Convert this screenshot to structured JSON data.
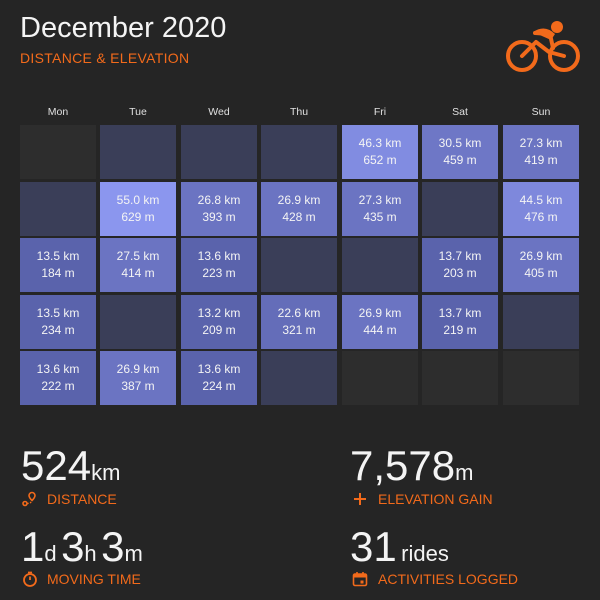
{
  "header": {
    "title": "December 2020",
    "subtitle": "DISTANCE & ELEVATION"
  },
  "logo": {
    "icon": "cyclist-icon",
    "color": "#f26a1b"
  },
  "calendar": {
    "days": [
      "Mon",
      "Tue",
      "Wed",
      "Thu",
      "Fri",
      "Sat",
      "Sun"
    ],
    "weeks": [
      [
        {
          "type": "empty"
        },
        {
          "type": "none"
        },
        {
          "type": "none"
        },
        {
          "type": "none"
        },
        {
          "type": "ride",
          "km": "46.3 km",
          "m": "652 m",
          "level": 0.85
        },
        {
          "type": "ride",
          "km": "30.5 km",
          "m": "459 m",
          "level": 0.55
        },
        {
          "type": "ride",
          "km": "27.3 km",
          "m": "419 m",
          "level": 0.5
        }
      ],
      [
        {
          "type": "none"
        },
        {
          "type": "ride",
          "km": "55.0 km",
          "m": "629 m",
          "level": 1.0
        },
        {
          "type": "ride",
          "km": "26.8 km",
          "m": "393 m",
          "level": 0.5
        },
        {
          "type": "ride",
          "km": "26.9 km",
          "m": "428 m",
          "level": 0.5
        },
        {
          "type": "ride",
          "km": "27.3 km",
          "m": "435 m",
          "level": 0.5
        },
        {
          "type": "none"
        },
        {
          "type": "ride",
          "km": "44.5 km",
          "m": "476 m",
          "level": 0.8
        }
      ],
      [
        {
          "type": "ride",
          "km": "13.5 km",
          "m": "184 m",
          "level": 0.25
        },
        {
          "type": "ride",
          "km": "27.5 km",
          "m": "414 m",
          "level": 0.5
        },
        {
          "type": "ride",
          "km": "13.6 km",
          "m": "223 m",
          "level": 0.25
        },
        {
          "type": "none"
        },
        {
          "type": "none"
        },
        {
          "type": "ride",
          "km": "13.7 km",
          "m": "203 m",
          "level": 0.25
        },
        {
          "type": "ride",
          "km": "26.9 km",
          "m": "405 m",
          "level": 0.5
        }
      ],
      [
        {
          "type": "ride",
          "km": "13.5 km",
          "m": "234 m",
          "level": 0.25
        },
        {
          "type": "none"
        },
        {
          "type": "ride",
          "km": "13.2 km",
          "m": "209 m",
          "level": 0.25
        },
        {
          "type": "ride",
          "km": "22.6 km",
          "m": "321 m",
          "level": 0.4
        },
        {
          "type": "ride",
          "km": "26.9 km",
          "m": "444 m",
          "level": 0.5
        },
        {
          "type": "ride",
          "km": "13.7 km",
          "m": "219 m",
          "level": 0.25
        },
        {
          "type": "none"
        }
      ],
      [
        {
          "type": "ride",
          "km": "13.6 km",
          "m": "222 m",
          "level": 0.25
        },
        {
          "type": "ride",
          "km": "26.9 km",
          "m": "387 m",
          "level": 0.5
        },
        {
          "type": "ride",
          "km": "13.6 km",
          "m": "224 m",
          "level": 0.25
        },
        {
          "type": "none"
        },
        {
          "type": "empty"
        },
        {
          "type": "empty"
        },
        {
          "type": "empty"
        }
      ]
    ],
    "colors": {
      "empty": "#2d2d2d",
      "none": "#3a3e58",
      "low": "#4a5296",
      "high": "#8b96ee"
    }
  },
  "stats": {
    "distance": {
      "value": "524",
      "unit": "km",
      "label": "DISTANCE",
      "icon": "route-pin-icon"
    },
    "elevation": {
      "value": "7,578",
      "unit": "m",
      "label": "ELEVATION GAIN",
      "icon": "plus-icon"
    },
    "time": {
      "d": "1",
      "d_unit": "d",
      "h": "3",
      "h_unit": "h",
      "m": "3",
      "m_unit": "m",
      "label": "MOVING TIME",
      "icon": "stopwatch-icon"
    },
    "rides": {
      "value": "31",
      "unit": "rides",
      "label": "ACTIVITIES LOGGED",
      "icon": "calendar-icon"
    }
  }
}
